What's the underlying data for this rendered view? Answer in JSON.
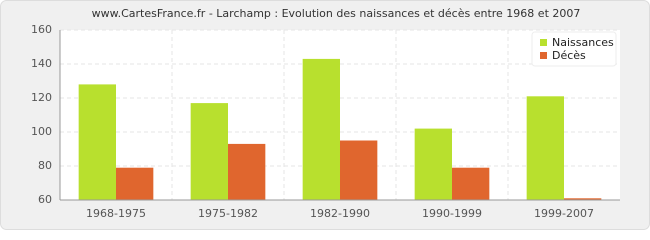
{
  "chart_data": {
    "type": "bar",
    "title": "www.CartesFrance.fr - Larchamp : Evolution des naissances et décès entre 1968 et 2007",
    "categories": [
      "1968-1975",
      "1975-1982",
      "1982-1990",
      "1990-1999",
      "1999-2007"
    ],
    "series": [
      {
        "name": "Naissances",
        "color": "#b8e02e",
        "values": [
          128,
          117,
          143,
          102,
          121
        ]
      },
      {
        "name": "Décès",
        "color": "#e0662e",
        "values": [
          79,
          93,
          95,
          79,
          61
        ]
      }
    ],
    "ylim": [
      60,
      160
    ],
    "yticks": [
      60,
      80,
      100,
      120,
      140,
      160
    ],
    "grid": true,
    "legend": "top-right"
  }
}
